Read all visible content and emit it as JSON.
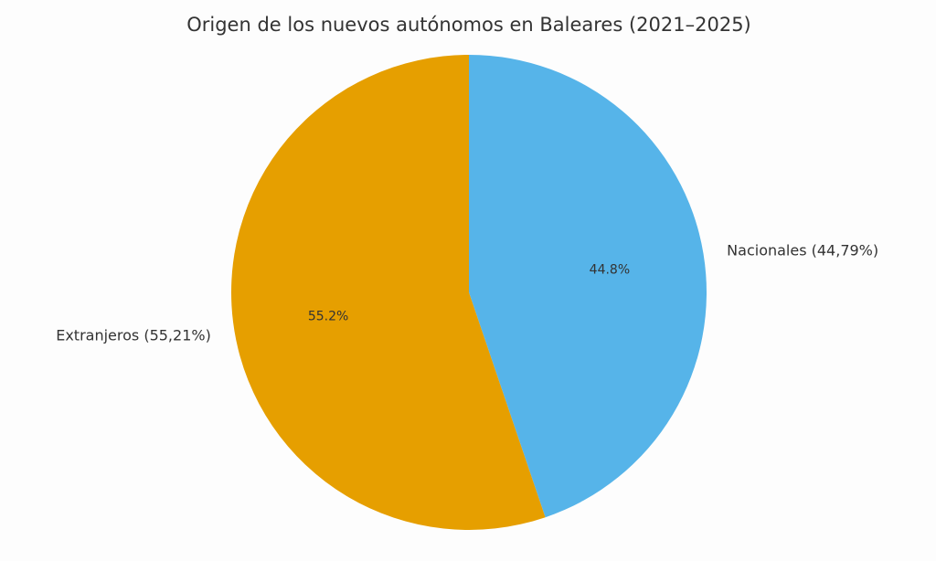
{
  "chart_data": {
    "type": "pie",
    "title": "Origen de los nuevos autónomos en Baleares (2021–2025)",
    "start_angle": "top",
    "direction": "clockwise",
    "slices": [
      {
        "label": "Nacionales (44,79%)",
        "value": 44.79,
        "pct_label": "44.8%",
        "color": "#56B4E9"
      },
      {
        "label": "Extranjeros (55,21%)",
        "value": 55.21,
        "pct_label": "55.2%",
        "color": "#E69F00"
      }
    ]
  }
}
